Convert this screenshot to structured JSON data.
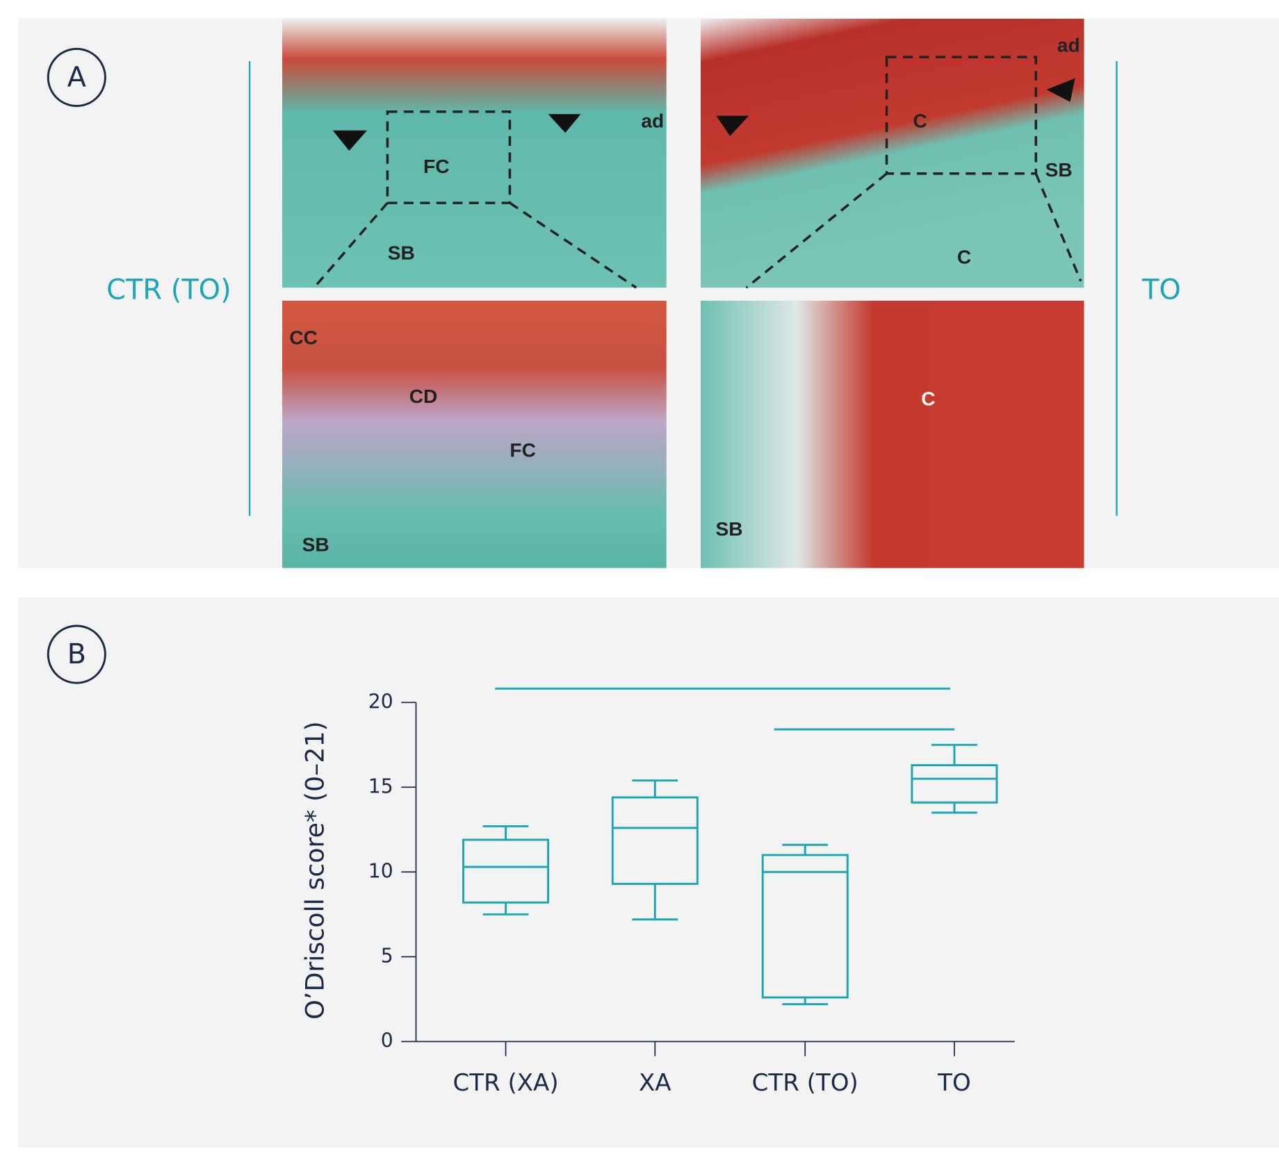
{
  "panel_a": {
    "label": "A",
    "left_label": "CTR (TO)",
    "right_label": "TO",
    "images": [
      {
        "labels": [
          "FC",
          "SB",
          "ad"
        ]
      },
      {
        "labels": [
          "ad",
          "C",
          "SB",
          "C"
        ]
      },
      {
        "labels": [
          "CC",
          "CD",
          "FC",
          "SB"
        ]
      },
      {
        "labels": [
          "C",
          "SB"
        ]
      }
    ]
  },
  "panel_b": {
    "label": "B"
  },
  "chart_data": {
    "type": "box",
    "y_label": "O’Driscoll score* (0–21)",
    "color": "#1aa6b8",
    "categories": [
      "CTR (XA)",
      "XA",
      "CTR (TO)",
      "TO"
    ],
    "boxes": [
      {
        "min": 7.5,
        "q1": 8.2,
        "median": 10.3,
        "q3": 11.9,
        "max": 12.7
      },
      {
        "min": 7.2,
        "q1": 9.3,
        "median": 12.6,
        "q3": 14.4,
        "max": 15.4
      },
      {
        "min": 2.2,
        "q1": 2.6,
        "median": 10.0,
        "q3": 11.0,
        "max": 11.6
      },
      {
        "min": 13.5,
        "q1": 14.1,
        "median": 15.5,
        "q3": 16.3,
        "max": 17.5
      }
    ],
    "ylim": [
      0,
      20
    ],
    "yticks": [
      0,
      5,
      10,
      15,
      20
    ]
  }
}
